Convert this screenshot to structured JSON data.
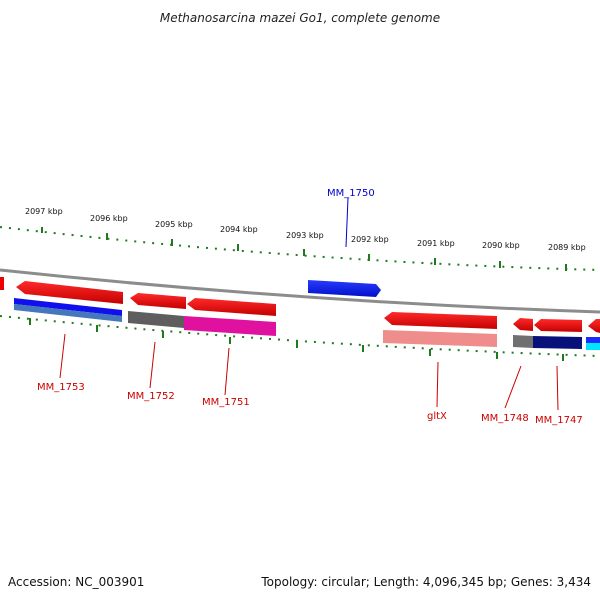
{
  "title": "Methanosarcina mazei Go1, complete genome",
  "footer": {
    "accession": "Accession: NC_003901",
    "summary": "Topology: circular; Length: 4,096,345 bp; Genes: 3,434"
  },
  "ruler": {
    "tick_labels": [
      "2097 kbp",
      "2096 kbp",
      "2095 kbp",
      "2094 kbp",
      "2093 kbp",
      "2092 kbp",
      "2091 kbp",
      "2090 kbp",
      "2089 kbp"
    ]
  },
  "genes": [
    {
      "label": "MM_1750",
      "color": "#0000cc"
    },
    {
      "label": "MM_1753",
      "color": "#cc0000"
    },
    {
      "label": "MM_1752",
      "color": "#cc0000"
    },
    {
      "label": "MM_1751",
      "color": "#cc0000"
    },
    {
      "label": "gltX",
      "color": "#cc0000"
    },
    {
      "label": "MM_1748",
      "color": "#cc0000"
    },
    {
      "label": "MM_1747",
      "color": "#cc0000"
    }
  ],
  "colors": {
    "backbone": "#8c8c8c",
    "ticks": "#1f7a1f",
    "forward_gene": "#0b15f0",
    "reverse_gene": "#ee0000"
  }
}
